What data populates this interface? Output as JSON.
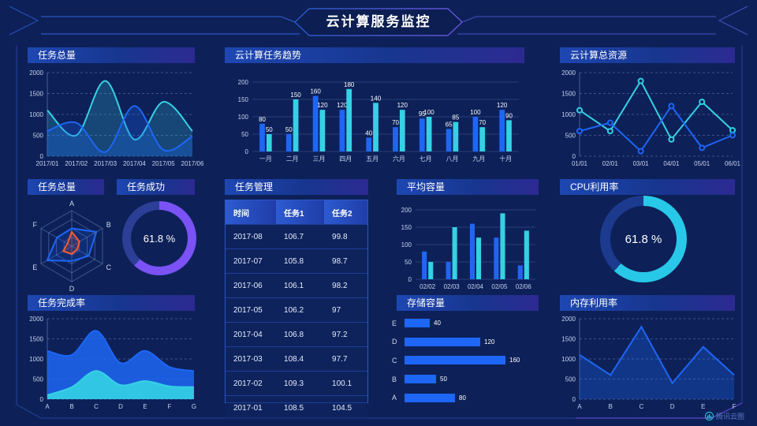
{
  "header": {
    "title": "云计算服务监控"
  },
  "brand": {
    "label": "腾讯云图"
  },
  "colors": {
    "blue": "#1e66f5",
    "cyan": "#35d1e5",
    "cyanBright": "#28c8e8",
    "purple": "#7a52f5",
    "orange": "#ff5a2d",
    "background": "#0d2158"
  },
  "panels": {
    "taskTotal": {
      "title": "任务总量"
    },
    "taskTrend": {
      "title": "云计算任务趋势"
    },
    "totalResource": {
      "title": "云计算总资源"
    },
    "radarTotal": {
      "title": "任务总量"
    },
    "taskSuccess": {
      "title": "任务成功"
    },
    "taskManage": {
      "title": "任务管理"
    },
    "avgCapacity": {
      "title": "平均容量"
    },
    "cpuUsage": {
      "title": "CPU利用率"
    },
    "taskComplete": {
      "title": "任务完成率"
    },
    "storage": {
      "title": "存储容量"
    },
    "memUsage": {
      "title": "内存利用率"
    }
  },
  "table": {
    "headers": [
      "时间",
      "任务1",
      "任务2"
    ],
    "rows": [
      [
        "2017-08",
        "106.7",
        "99.8"
      ],
      [
        "2017-07",
        "105.8",
        "98.7"
      ],
      [
        "2017-06",
        "106.1",
        "98.2"
      ],
      [
        "2017-05",
        "106.2",
        "97"
      ],
      [
        "2017-04",
        "106.8",
        "97.2"
      ],
      [
        "2017-03",
        "108.4",
        "97.7"
      ],
      [
        "2017-02",
        "109.3",
        "100.1"
      ],
      [
        "2017-01",
        "108.5",
        "104.5"
      ]
    ]
  },
  "chart_data": [
    {
      "id": "taskTotal",
      "type": "line",
      "smooth": true,
      "categories": [
        "2017/01",
        "2017/02",
        "2017/03",
        "2017/04",
        "2017/05",
        "2017/06"
      ],
      "ymax": 2000,
      "yticks": [
        0,
        500,
        1000,
        1500,
        2000
      ],
      "series": [
        {
          "color": "cyan",
          "values": [
            1100,
            500,
            1800,
            400,
            1300,
            600
          ],
          "fill": 0.22
        },
        {
          "color": "blue",
          "values": [
            600,
            800,
            100,
            1200,
            150,
            480
          ],
          "fill": 0.28
        }
      ]
    },
    {
      "id": "taskTrend",
      "type": "bar",
      "labels": true,
      "categories": [
        "一月",
        "二月",
        "三月",
        "四月",
        "五月",
        "六月",
        "七月",
        "八月",
        "九月",
        "十月"
      ],
      "ymax": 200,
      "yticks": [
        0,
        50,
        100,
        150,
        200
      ],
      "series": [
        {
          "color": "blue",
          "values": [
            80,
            50,
            160,
            120,
            40,
            70,
            95,
            65,
            100,
            120
          ]
        },
        {
          "color": "cyan",
          "values": [
            50,
            150,
            120,
            180,
            140,
            120,
            100,
            85,
            70,
            90
          ]
        }
      ]
    },
    {
      "id": "totalResource",
      "type": "line",
      "smooth": false,
      "markers": true,
      "categories": [
        "01/01",
        "02/01",
        "03/01",
        "04/01",
        "05/01",
        "06/01"
      ],
      "ymax": 2000,
      "yticks": [
        0,
        500,
        1000,
        1500,
        2000
      ],
      "series": [
        {
          "color": "cyan",
          "values": [
            1100,
            600,
            1800,
            400,
            1300,
            620
          ]
        },
        {
          "color": "blue",
          "values": [
            600,
            800,
            120,
            1200,
            200,
            500
          ]
        }
      ]
    },
    {
      "id": "taskTotalRadar",
      "type": "radar",
      "levels": 4,
      "max": 100,
      "axes": [
        "A",
        "B",
        "C",
        "D",
        "E",
        "F"
      ],
      "series": [
        {
          "color": "blue",
          "values": [
            50,
            80,
            55,
            42,
            80,
            48
          ]
        },
        {
          "color": "orange",
          "values": [
            40,
            25,
            18,
            22,
            28,
            14
          ]
        }
      ]
    },
    {
      "id": "taskSuccess",
      "type": "donut",
      "size": 94,
      "value": 61.8,
      "label": "61.8 %",
      "arcColor": "purple",
      "restColor": "#2c3f97",
      "fontSize": 13
    },
    {
      "id": "avgCapacity",
      "type": "bar",
      "labels": false,
      "categories": [
        "02/02",
        "02/03",
        "02/04",
        "02/05",
        "02/06"
      ],
      "ymax": 200,
      "yticks": [
        0,
        50,
        100,
        150,
        200
      ],
      "series": [
        {
          "color": "blue",
          "values": [
            80,
            50,
            160,
            120,
            40
          ]
        },
        {
          "color": "cyan",
          "values": [
            50,
            150,
            120,
            190,
            140
          ]
        }
      ]
    },
    {
      "id": "cpuUsage",
      "type": "donut",
      "size": 110,
      "value": 61.8,
      "label": "61.8 %",
      "arcColor": "cyanBright",
      "restColor": "#1c3a8e",
      "fontSize": 15
    },
    {
      "id": "taskComplete",
      "type": "line",
      "smooth": true,
      "categories": [
        "A",
        "B",
        "C",
        "D",
        "E",
        "F",
        "G"
      ],
      "ymax": 2000,
      "yticks": [
        0,
        500,
        1000,
        1500,
        2000
      ],
      "series": [
        {
          "color": "blue",
          "values": [
            1200,
            1100,
            1700,
            900,
            1200,
            800,
            700
          ],
          "fill": 0.85
        },
        {
          "color": "cyan",
          "values": [
            100,
            300,
            700,
            350,
            450,
            320,
            300
          ],
          "fill": 0.9
        }
      ]
    },
    {
      "id": "storage",
      "type": "hbar",
      "max": 160,
      "color": "blue",
      "rows": [
        {
          "label": "E",
          "value": 40
        },
        {
          "label": "D",
          "value": 120
        },
        {
          "label": "C",
          "value": 160
        },
        {
          "label": "B",
          "value": 50
        },
        {
          "label": "A",
          "value": 80
        }
      ]
    },
    {
      "id": "memUsage",
      "type": "line",
      "smooth": false,
      "categories": [
        "A",
        "B",
        "C",
        "D",
        "E",
        "F"
      ],
      "ymax": 2000,
      "yticks": [
        0,
        500,
        1000,
        1500,
        2000
      ],
      "series": [
        {
          "color": "blue",
          "values": [
            1100,
            600,
            1800,
            400,
            1300,
            600
          ],
          "fill": 0.3
        }
      ]
    }
  ]
}
